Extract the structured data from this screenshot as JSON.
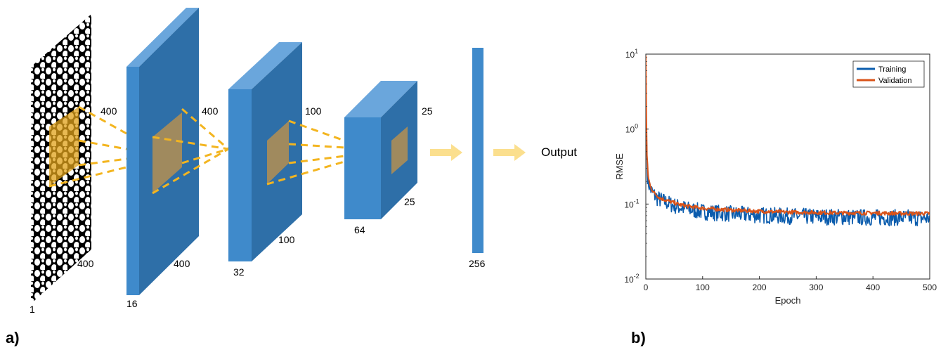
{
  "panel_a": {
    "label": "a)",
    "input_dims": {
      "height": "400",
      "width": "400",
      "channels": "1"
    },
    "layers": [
      {
        "height": "400",
        "width": "400",
        "filters": "16"
      },
      {
        "height": "100",
        "width": "100",
        "filters": "32"
      },
      {
        "height": "25",
        "width": "25",
        "filters": "64"
      }
    ],
    "dense_units": "256",
    "output_label": "Output",
    "colors": {
      "layer_front": "#3f8acb",
      "layer_side": "#2e6fa8",
      "layer_top": "#6aa6dc",
      "filter": "#a08a5e",
      "dash": "#f3b520",
      "arrow": "#fbdf8e"
    }
  },
  "panel_b": {
    "label": "b)"
  },
  "chart_data": {
    "type": "line",
    "title": "",
    "xlabel": "Epoch",
    "ylabel": "RMSE",
    "xlim": [
      0,
      500
    ],
    "ylim": [
      0.01,
      10
    ],
    "yscale": "log",
    "xticks": [
      "0",
      "100",
      "200",
      "300",
      "400",
      "500"
    ],
    "yticks": [
      {
        "base": "10",
        "exp": "-2"
      },
      {
        "base": "10",
        "exp": "-1"
      },
      {
        "base": "10",
        "exp": "0"
      },
      {
        "base": "10",
        "exp": "1"
      }
    ],
    "grid": false,
    "legend_position": "top-right",
    "series": [
      {
        "name": "Training",
        "color": "#0b5cad",
        "points": [
          [
            0,
            9.0
          ],
          [
            1,
            1.2
          ],
          [
            2,
            0.4
          ],
          [
            3,
            0.24
          ],
          [
            5,
            0.19
          ],
          [
            8,
            0.16
          ],
          [
            12,
            0.14
          ],
          [
            20,
            0.12
          ],
          [
            30,
            0.11
          ],
          [
            50,
            0.095
          ],
          [
            75,
            0.085
          ],
          [
            100,
            0.079
          ],
          [
            150,
            0.074
          ],
          [
            200,
            0.071
          ],
          [
            250,
            0.069
          ],
          [
            300,
            0.068
          ],
          [
            350,
            0.067
          ],
          [
            400,
            0.066
          ],
          [
            450,
            0.066
          ],
          [
            500,
            0.065
          ]
        ]
      },
      {
        "name": "Validation",
        "color": "#d95319",
        "points": [
          [
            0,
            9.5
          ],
          [
            1,
            1.4
          ],
          [
            2,
            0.45
          ],
          [
            4,
            0.24
          ],
          [
            8,
            0.17
          ],
          [
            15,
            0.14
          ],
          [
            25,
            0.12
          ],
          [
            40,
            0.11
          ],
          [
            60,
            0.098
          ],
          [
            80,
            0.092
          ],
          [
            100,
            0.088
          ],
          [
            150,
            0.083
          ],
          [
            200,
            0.08
          ],
          [
            250,
            0.078
          ],
          [
            300,
            0.077
          ],
          [
            350,
            0.076
          ],
          [
            400,
            0.076
          ],
          [
            450,
            0.075
          ],
          [
            500,
            0.075
          ]
        ]
      }
    ]
  }
}
